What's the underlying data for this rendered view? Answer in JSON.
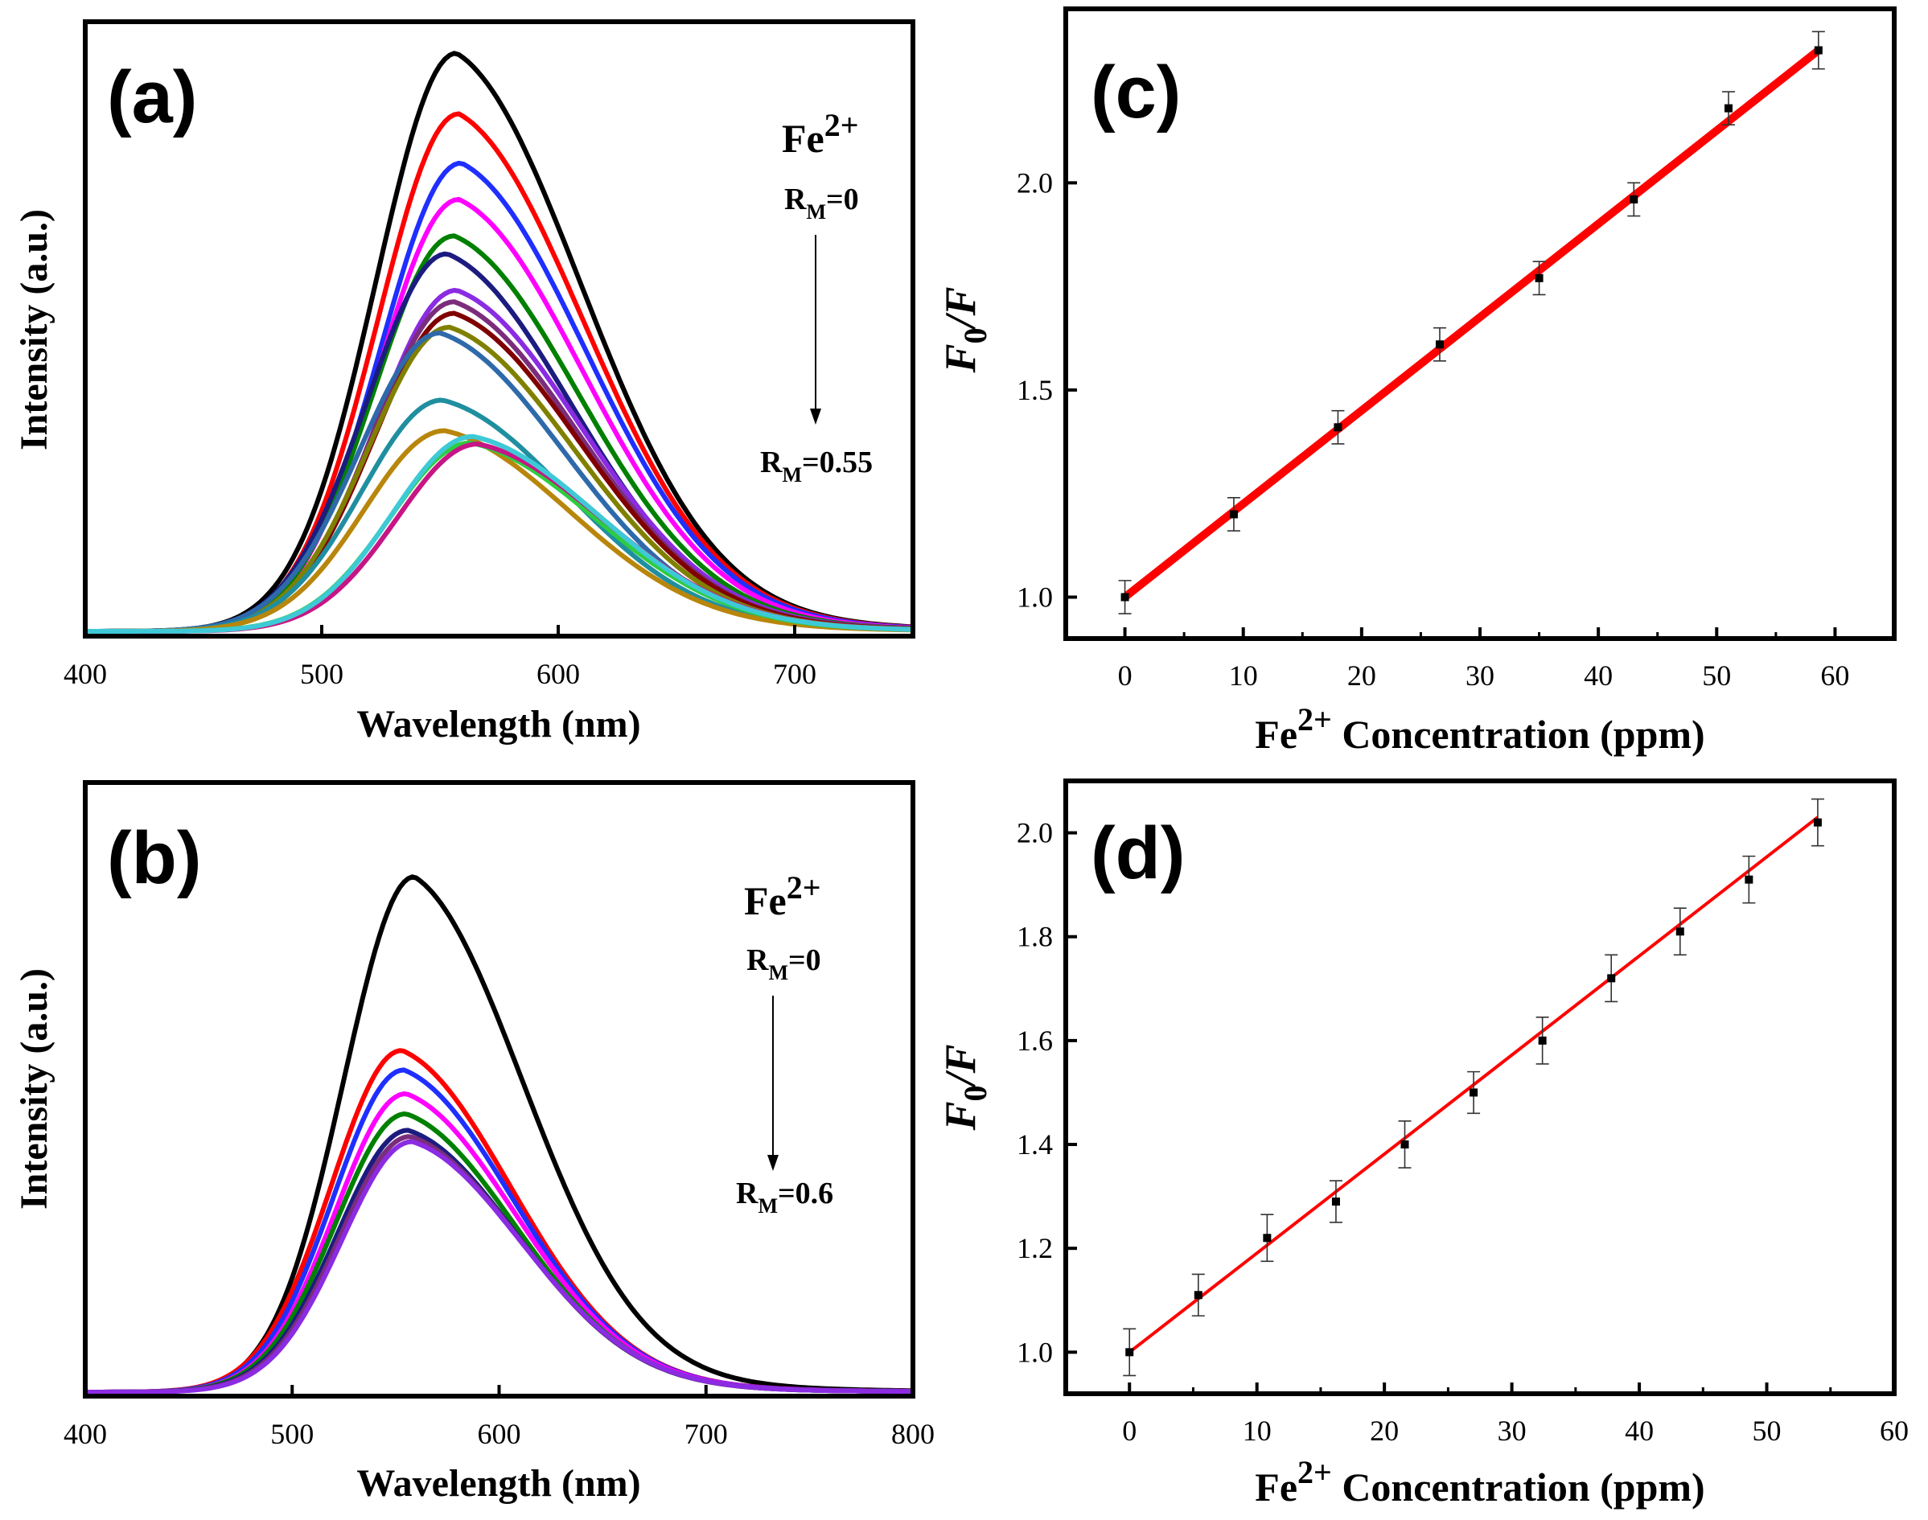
{
  "chart_data": [
    {
      "id": "a",
      "type": "line",
      "panel_label": "(a)",
      "xlabel": "Wavelength (nm)",
      "ylabel": "Intensity (a.u.)",
      "xlim": [
        400,
        750
      ],
      "ylim": [
        0,
        100
      ],
      "xticks": [
        400,
        500,
        600,
        700
      ],
      "annotation": {
        "ion": "Fe",
        "charge": "2+",
        "r_prefix": "R",
        "r_sub": "M",
        "start": "=0",
        "end": "=0.55"
      },
      "series": [
        {
          "color": "#000000",
          "peak": 100,
          "center": 557
        },
        {
          "color": "#ff0000",
          "peak": 89.5,
          "center": 558
        },
        {
          "color": "#1f2fff",
          "peak": 81,
          "center": 559
        },
        {
          "color": "#ff00ff",
          "peak": 74.7,
          "center": 558
        },
        {
          "color": "#008000",
          "peak": 68.4,
          "center": 556
        },
        {
          "color": "#1c1c80",
          "peak": 65.3,
          "center": 553
        },
        {
          "color": "#8b2be2",
          "peak": 59,
          "center": 557
        },
        {
          "color": "#7b2d7b",
          "peak": 57,
          "center": 556
        },
        {
          "color": "#800000",
          "peak": 55,
          "center": 556
        },
        {
          "color": "#808000",
          "peak": 52.6,
          "center": 554
        },
        {
          "color": "#2e6aaa",
          "peak": 51.6,
          "center": 550
        },
        {
          "color": "#1f8fa0",
          "peak": 40,
          "center": 551
        },
        {
          "color": "#b8860b",
          "peak": 34.7,
          "center": 552
        },
        {
          "color": "#2ecc40",
          "peak": 32.6,
          "center": 563
        },
        {
          "color": "#c71585",
          "peak": 32.4,
          "center": 566
        },
        {
          "color": "#3ec9d6",
          "peak": 33.7,
          "center": 564
        }
      ]
    },
    {
      "id": "b",
      "type": "line",
      "panel_label": "(b)",
      "xlabel": "Wavelength (nm)",
      "ylabel": "Intensity (a.u.)",
      "xlim": [
        400,
        800
      ],
      "ylim": [
        0,
        100
      ],
      "xticks": [
        400,
        500,
        600,
        700,
        800
      ],
      "annotation": {
        "ion": "Fe",
        "charge": "2+",
        "r_prefix": "R",
        "r_sub": "M",
        "start": "=0",
        "end": "=0.6"
      },
      "series": [
        {
          "color": "#000000",
          "peak": 100,
          "center": 559
        },
        {
          "color": "#ff0000",
          "peak": 66.3,
          "center": 553
        },
        {
          "color": "#1f2fff",
          "peak": 62.5,
          "center": 554
        },
        {
          "color": "#ff00ff",
          "peak": 57.9,
          "center": 555
        },
        {
          "color": "#008000",
          "peak": 54,
          "center": 555
        },
        {
          "color": "#1c1c80",
          "peak": 50.8,
          "center": 556
        },
        {
          "color": "#7b2d7b",
          "peak": 49.6,
          "center": 557
        },
        {
          "color": "#8b2be2",
          "peak": 48.6,
          "center": 558
        }
      ]
    },
    {
      "id": "c",
      "type": "scatter",
      "panel_label": "(c)",
      "xlabel_prefix": "Fe",
      "xlabel_sup": "2+",
      "xlabel_suffix": " Concentration (ppm)",
      "ylabel_main": "F",
      "ylabel_sub": "0",
      "ylabel_rest": "/F",
      "xlim": [
        -5,
        65
      ],
      "ylim": [
        0.9,
        2.42
      ],
      "xticks": [
        0,
        10,
        20,
        30,
        40,
        50,
        60
      ],
      "yticks": [
        1.0,
        1.5,
        2.0
      ],
      "ytick_labels": [
        "1.0",
        "1.5",
        "2.0"
      ],
      "points": [
        {
          "x": 0,
          "y": 1.0,
          "err": 0.04
        },
        {
          "x": 9.2,
          "y": 1.2,
          "err": 0.04
        },
        {
          "x": 18,
          "y": 1.41,
          "err": 0.04
        },
        {
          "x": 26.6,
          "y": 1.61,
          "err": 0.04
        },
        {
          "x": 35,
          "y": 1.77,
          "err": 0.04
        },
        {
          "x": 43,
          "y": 1.96,
          "err": 0.04
        },
        {
          "x": 51,
          "y": 2.18,
          "err": 0.04
        },
        {
          "x": 58.6,
          "y": 2.32,
          "err": 0.045
        }
      ],
      "fit": {
        "x": [
          0,
          58.6
        ],
        "y": [
          1.0,
          2.32
        ],
        "color": "#ff0000"
      }
    },
    {
      "id": "d",
      "type": "scatter",
      "panel_label": "(d)",
      "xlabel_prefix": "Fe",
      "xlabel_sup": "2+",
      "xlabel_suffix": " Concentration (ppm)",
      "ylabel_main": "F",
      "ylabel_sub": "0",
      "ylabel_rest": "/F",
      "xlim": [
        -5,
        60
      ],
      "ylim": [
        0.92,
        2.1
      ],
      "xticks": [
        0,
        10,
        20,
        30,
        40,
        50,
        60
      ],
      "yticks": [
        1.0,
        1.2,
        1.4,
        1.6,
        1.8,
        2.0
      ],
      "ytick_labels": [
        "1.0",
        "1.2",
        "1.4",
        "1.6",
        "1.8",
        "2.0"
      ],
      "points": [
        {
          "x": 0,
          "y": 1.0,
          "err": 0.045
        },
        {
          "x": 5.4,
          "y": 1.11,
          "err": 0.04
        },
        {
          "x": 10.8,
          "y": 1.22,
          "err": 0.045
        },
        {
          "x": 16.2,
          "y": 1.29,
          "err": 0.04
        },
        {
          "x": 21.6,
          "y": 1.4,
          "err": 0.045
        },
        {
          "x": 27,
          "y": 1.5,
          "err": 0.04
        },
        {
          "x": 32.4,
          "y": 1.6,
          "err": 0.045
        },
        {
          "x": 37.8,
          "y": 1.72,
          "err": 0.045
        },
        {
          "x": 43.2,
          "y": 1.81,
          "err": 0.045
        },
        {
          "x": 48.6,
          "y": 1.91,
          "err": 0.045
        },
        {
          "x": 54,
          "y": 2.02,
          "err": 0.045
        }
      ],
      "fit": {
        "x": [
          0,
          54
        ],
        "y": [
          1.0,
          2.03
        ],
        "color": "#ff0000"
      }
    }
  ]
}
